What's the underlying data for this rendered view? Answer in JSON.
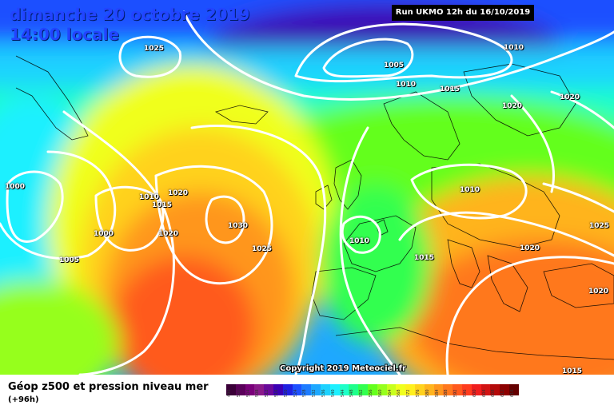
{
  "header": {
    "date": "dimanche 20 octobre 2019",
    "time": "14:00 locale",
    "run": "Run UKMO 12h du 16/10/2019"
  },
  "copyright": "Copyright 2019 Meteociel.fr",
  "legend": {
    "title": "Géop z500 et pression niveau mer",
    "subtitle": "(+96h)",
    "scale_values": [
      "496",
      "500",
      "504",
      "508",
      "512",
      "516",
      "520",
      "524",
      "528",
      "532",
      "536",
      "540",
      "544",
      "548",
      "552",
      "556",
      "560",
      "564",
      "568",
      "572",
      "576",
      "580",
      "584",
      "588",
      "592",
      "596",
      "600",
      "604",
      "608",
      "612",
      "616"
    ],
    "scale_colors": [
      "#3a0038",
      "#5a005a",
      "#7a007a",
      "#8a1a8a",
      "#6a0a9a",
      "#3c00b4",
      "#2020e0",
      "#1e50ff",
      "#1e7cff",
      "#1ea8ff",
      "#1ed2ff",
      "#1ef0ff",
      "#1effc8",
      "#1eff8c",
      "#32ff50",
      "#64ff1e",
      "#96ff1e",
      "#c8ff1e",
      "#f0ff1e",
      "#fff01e",
      "#ffd21e",
      "#ffb41e",
      "#ff961e",
      "#ff781e",
      "#ff5a1e",
      "#ff3c1e",
      "#f01e1e",
      "#d21414",
      "#b40a0a",
      "#8c0000",
      "#640000"
    ]
  },
  "isobar_labels": [
    {
      "text": "1025"
    },
    {
      "text": "1005"
    },
    {
      "text": "1010"
    },
    {
      "text": "1010"
    },
    {
      "text": "1015"
    },
    {
      "text": "1020"
    },
    {
      "text": "1020"
    },
    {
      "text": "1000"
    },
    {
      "text": "1010"
    },
    {
      "text": "1020"
    },
    {
      "text": "1015"
    },
    {
      "text": "1000"
    },
    {
      "text": "1020"
    },
    {
      "text": "1030"
    },
    {
      "text": "1025"
    },
    {
      "text": "1005"
    },
    {
      "text": "1010"
    },
    {
      "text": "1010"
    },
    {
      "text": "1015"
    },
    {
      "text": "1020"
    },
    {
      "text": "1025"
    },
    {
      "text": "1020"
    },
    {
      "text": "1015"
    }
  ]
}
